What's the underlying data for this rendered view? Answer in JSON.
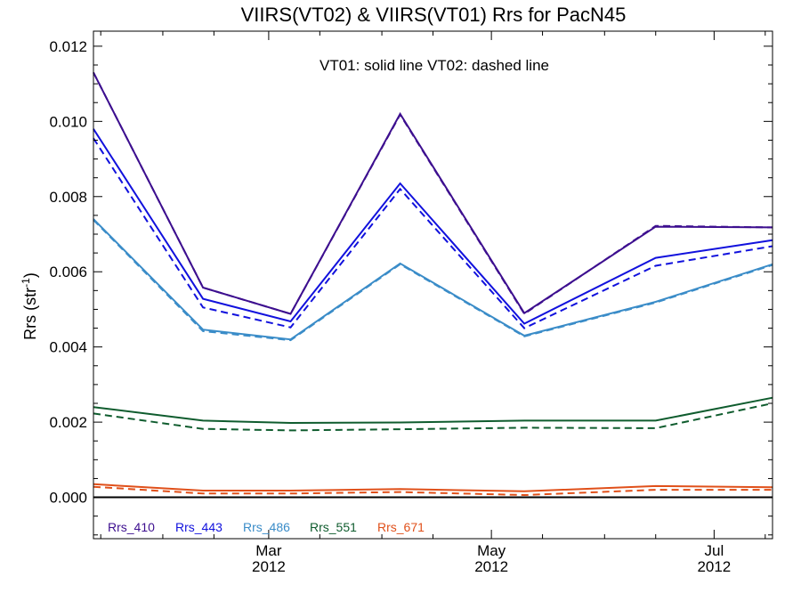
{
  "chart_data": {
    "type": "line",
    "title": "VIIRS(VT02) & VIIRS(VT01)  Rrs for PacN45",
    "annotation": "VT01: solid line   VT02: dashed line",
    "ylabel": "Rrs (str",
    "ylabel_sup": "-1",
    "ylabel_close": ")",
    "ylim": [
      -0.0011,
      0.0124
    ],
    "y_ticks": [
      "0.000",
      "0.002",
      "0.004",
      "0.006",
      "0.008",
      "0.010",
      "0.012"
    ],
    "y_tick_values": [
      0.0,
      0.002,
      0.004,
      0.006,
      0.008,
      0.01,
      0.012
    ],
    "xlim": [
      "2012-01-13",
      "2012-07-17"
    ],
    "x_ticks": [
      {
        "date": "2012-03-01",
        "month": "Mar",
        "year": "2012"
      },
      {
        "date": "2012-05-01",
        "month": "May",
        "year": "2012"
      },
      {
        "date": "2012-07-01",
        "month": "Jul",
        "year": "2012"
      }
    ],
    "x": [
      "2012-01-13",
      "2012-02-12",
      "2012-03-07",
      "2012-04-06",
      "2012-05-10",
      "2012-06-15",
      "2012-07-17"
    ],
    "zero_line": 0.0,
    "series": [
      {
        "name": "Rrs_410",
        "color": "#3d0f8f",
        "style": "solid",
        "values": [
          0.0113,
          0.00558,
          0.00488,
          0.0102,
          0.0049,
          0.0072,
          0.00718
        ]
      },
      {
        "name": "Rrs_410",
        "color": "#3d0f8f",
        "style": "dashed",
        "values": [
          0.0113,
          0.00558,
          0.00488,
          0.01018,
          0.00488,
          0.00722,
          0.00718
        ]
      },
      {
        "name": "Rrs_443",
        "color": "#1111dd",
        "style": "solid",
        "values": [
          0.0098,
          0.00528,
          0.00468,
          0.00835,
          0.00462,
          0.00637,
          0.00684
        ]
      },
      {
        "name": "Rrs_443",
        "color": "#1111dd",
        "style": "dashed",
        "values": [
          0.00955,
          0.00505,
          0.00452,
          0.0082,
          0.0045,
          0.00616,
          0.00668
        ]
      },
      {
        "name": "Rrs_486",
        "color": "#3a8cc8",
        "style": "solid",
        "values": [
          0.0074,
          0.00446,
          0.0042,
          0.00622,
          0.0043,
          0.0052,
          0.0062
        ]
      },
      {
        "name": "Rrs_486",
        "color": "#3a8cc8",
        "style": "dashed",
        "values": [
          0.00738,
          0.00442,
          0.00418,
          0.0062,
          0.00428,
          0.00518,
          0.00618
        ]
      },
      {
        "name": "Rrs_551",
        "color": "#0f5c2e",
        "style": "solid",
        "values": [
          0.0024,
          0.00204,
          0.00198,
          0.00199,
          0.00204,
          0.00204,
          0.00265
        ]
      },
      {
        "name": "Rrs_551",
        "color": "#0f5c2e",
        "style": "dashed",
        "values": [
          0.00223,
          0.00182,
          0.00178,
          0.00181,
          0.00185,
          0.00184,
          0.0025
        ]
      },
      {
        "name": "Rrs_671",
        "color": "#e0501a",
        "style": "solid",
        "values": [
          0.00035,
          0.00018,
          0.00018,
          0.00022,
          0.00016,
          0.0003,
          0.00027
        ]
      },
      {
        "name": "Rrs_671",
        "color": "#e0501a",
        "style": "dashed",
        "values": [
          0.00028,
          0.0001,
          0.0001,
          0.00014,
          6e-05,
          0.0002,
          0.0002
        ]
      }
    ],
    "legend": [
      {
        "label": "Rrs_410",
        "color": "#3d0f8f"
      },
      {
        "label": "Rrs_443",
        "color": "#1111dd"
      },
      {
        "label": "Rrs_486",
        "color": "#3a8cc8"
      },
      {
        "label": "Rrs_551",
        "color": "#0f5c2e"
      },
      {
        "label": "Rrs_671",
        "color": "#e0501a"
      }
    ],
    "legend_position": "bottom-left",
    "grid": false
  }
}
